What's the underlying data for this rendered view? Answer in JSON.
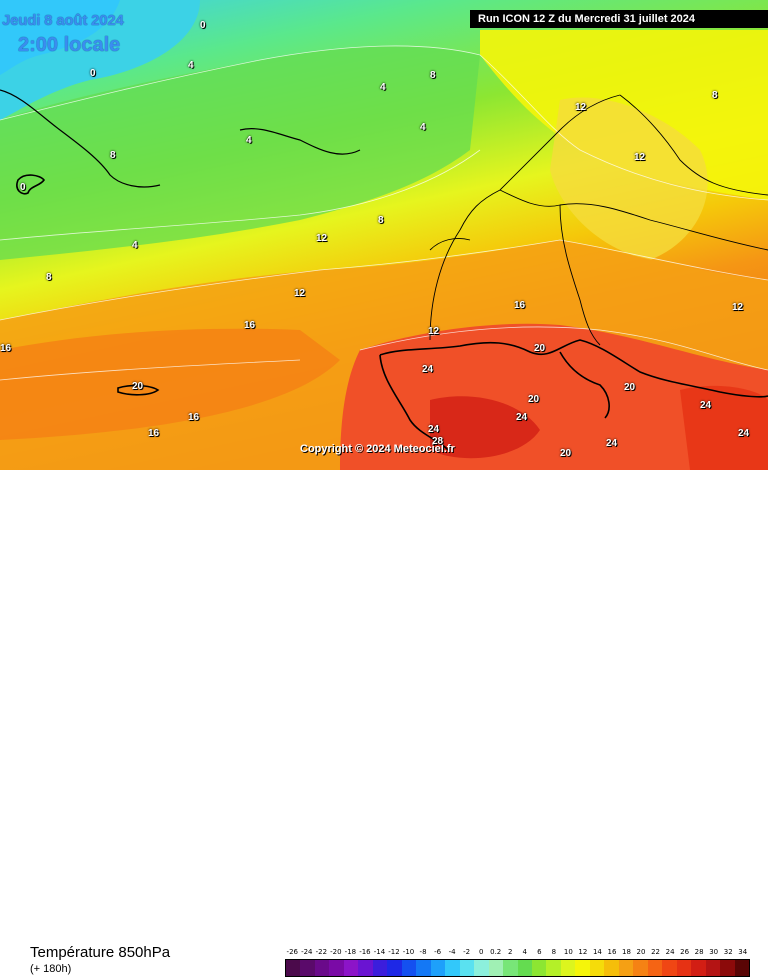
{
  "map": {
    "date": "Jeudi 8 août 2024",
    "time": "2:00 locale",
    "run": "Run ICON 12 Z du Mercredi 31 juillet 2024",
    "copyright": "Copyright © 2024 Meteociel.fr",
    "isotherm_labels": [
      "0",
      "4",
      "8",
      "12",
      "16",
      "20",
      "24",
      "28"
    ]
  },
  "footer": {
    "title": "Température 850hPa",
    "subtitle": "(+ 180h)"
  },
  "legend": {
    "values": [
      "-26",
      "-24",
      "-22",
      "-20",
      "-18",
      "-16",
      "-14",
      "-12",
      "-10",
      "-8",
      "-6",
      "-4",
      "-2",
      "0",
      "0.2",
      "2",
      "4",
      "6",
      "8",
      "10",
      "12",
      "14",
      "16",
      "18",
      "20",
      "22",
      "24",
      "26",
      "28",
      "30",
      "32",
      "34"
    ],
    "colors": [
      "#4b0a4b",
      "#5a0a6a",
      "#6a0a8a",
      "#7a0aa6",
      "#8c14c8",
      "#6a14d2",
      "#3c1edc",
      "#1e28e6",
      "#1450f0",
      "#1478f5",
      "#1ea0fa",
      "#32c8fa",
      "#5ae1f0",
      "#8cf0dc",
      "#a0f0b4",
      "#78e678",
      "#64dc50",
      "#8ce632",
      "#b4f028",
      "#dcf51e",
      "#f5f50a",
      "#f5dc0a",
      "#f5be0a",
      "#f5a014",
      "#f58214",
      "#f56414",
      "#f04614",
      "#e63214",
      "#d21e14",
      "#b41414",
      "#8c0a0a",
      "#5a0505"
    ]
  }
}
